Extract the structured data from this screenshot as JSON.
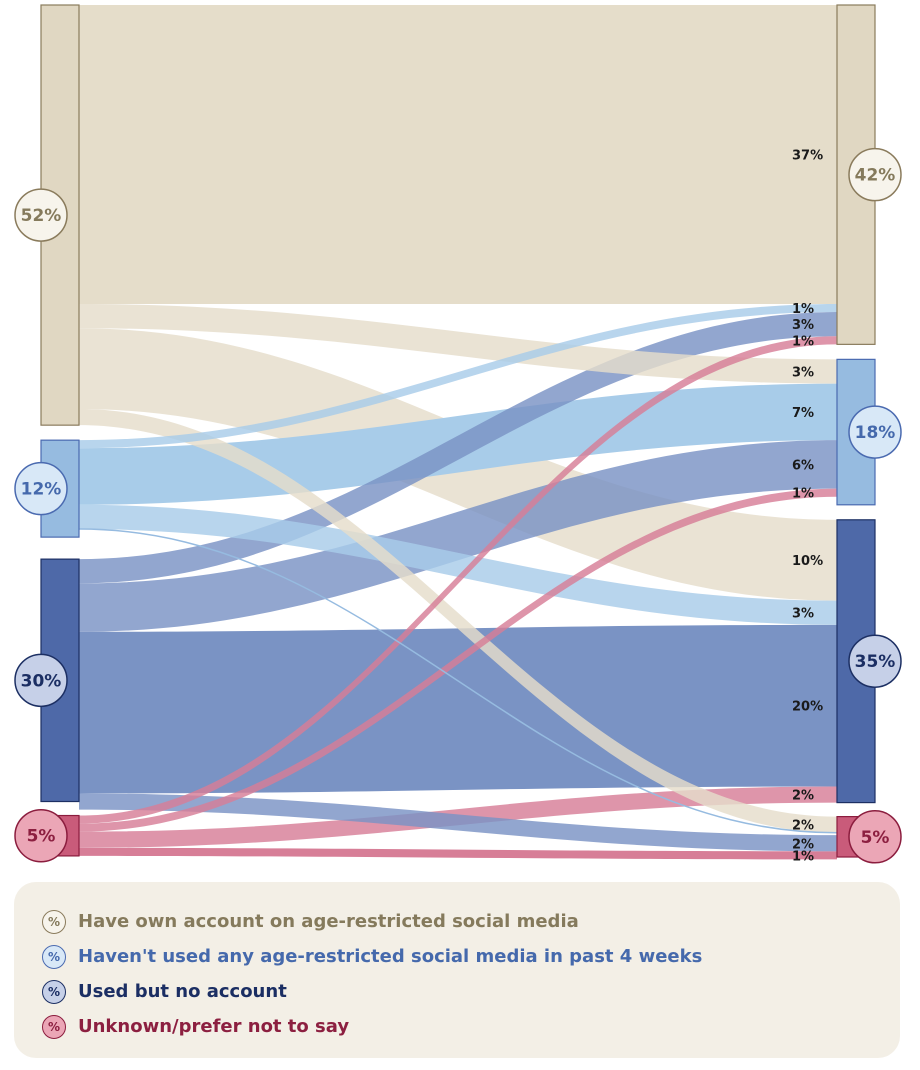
{
  "chart_data": {
    "type": "sankey",
    "categories": [
      {
        "id": "own",
        "label": "Have own account on age-restricted social media",
        "color": "#e5ddca",
        "bar": "#e0d7c2",
        "border": "#8a7b5c",
        "text": "#857a5c",
        "circle_fill": "#f7f4ec"
      },
      {
        "id": "unused",
        "label": "Haven't used any age-restricted social media in past 4 weeks",
        "color": "#a8cce9",
        "bar": "#96bbe0",
        "border": "#4a6ab0",
        "text": "#4569ac",
        "circle_fill": "#d8e8f7"
      },
      {
        "id": "noacct",
        "label": "Used but no account",
        "color": "#7a93c4",
        "bar": "#4e69a8",
        "border": "#1c2f63",
        "text": "#1b2e63",
        "circle_fill": "#c6d0e8"
      },
      {
        "id": "unknown",
        "label": "Unknown/prefer not to say",
        "color": "#d77e97",
        "bar": "#c95b7a",
        "border": "#8b1d3e",
        "text": "#8c1f40",
        "circle_fill": "#eba6b6"
      }
    ],
    "left": [
      {
        "id": "own",
        "label": "52%",
        "value": 52
      },
      {
        "id": "unused",
        "label": "12%",
        "value": 12
      },
      {
        "id": "noacct",
        "label": "30%",
        "value": 30
      },
      {
        "id": "unknown",
        "label": "5%",
        "value": 5
      }
    ],
    "right": [
      {
        "id": "own",
        "label": "42%",
        "value": 42
      },
      {
        "id": "unused",
        "label": "18%",
        "value": 18
      },
      {
        "id": "noacct",
        "label": "35%",
        "value": 35
      },
      {
        "id": "unknown",
        "label": "5%",
        "value": 5
      }
    ],
    "flows": [
      {
        "from": "own",
        "to": "own",
        "value": 37,
        "label": "37%"
      },
      {
        "from": "unused",
        "to": "own",
        "value": 1,
        "label": "1%"
      },
      {
        "from": "noacct",
        "to": "own",
        "value": 3,
        "label": "3%"
      },
      {
        "from": "unknown",
        "to": "own",
        "value": 1,
        "label": "1%"
      },
      {
        "from": "own",
        "to": "unused",
        "value": 3,
        "label": "3%"
      },
      {
        "from": "unused",
        "to": "unused",
        "value": 7,
        "label": "7%"
      },
      {
        "from": "noacct",
        "to": "unused",
        "value": 6,
        "label": "6%"
      },
      {
        "from": "unknown",
        "to": "unused",
        "value": 1,
        "label": "1%"
      },
      {
        "from": "own",
        "to": "noacct",
        "value": 10,
        "label": "10%"
      },
      {
        "from": "unused",
        "to": "noacct",
        "value": 3,
        "label": "3%"
      },
      {
        "from": "noacct",
        "to": "noacct",
        "value": 20,
        "label": "20%"
      },
      {
        "from": "unknown",
        "to": "noacct",
        "value": 2,
        "label": "2%"
      },
      {
        "from": "own",
        "to": "unknown",
        "value": 2,
        "label": "2%"
      },
      {
        "from": "unused",
        "to": "unknown",
        "value": 0.3,
        "label": ""
      },
      {
        "from": "noacct",
        "to": "unknown",
        "value": 2,
        "label": "2%"
      },
      {
        "from": "unknown",
        "to": "unknown",
        "value": 1,
        "label": "1%"
      }
    ]
  },
  "legend": {
    "icon_text": "%",
    "items": [
      {
        "label": "Have own account on age-restricted social media"
      },
      {
        "label": "Haven't used any age-restricted social media in past 4 weeks"
      },
      {
        "label": "Used but no account"
      },
      {
        "label": "Unknown/prefer not to say"
      }
    ]
  }
}
